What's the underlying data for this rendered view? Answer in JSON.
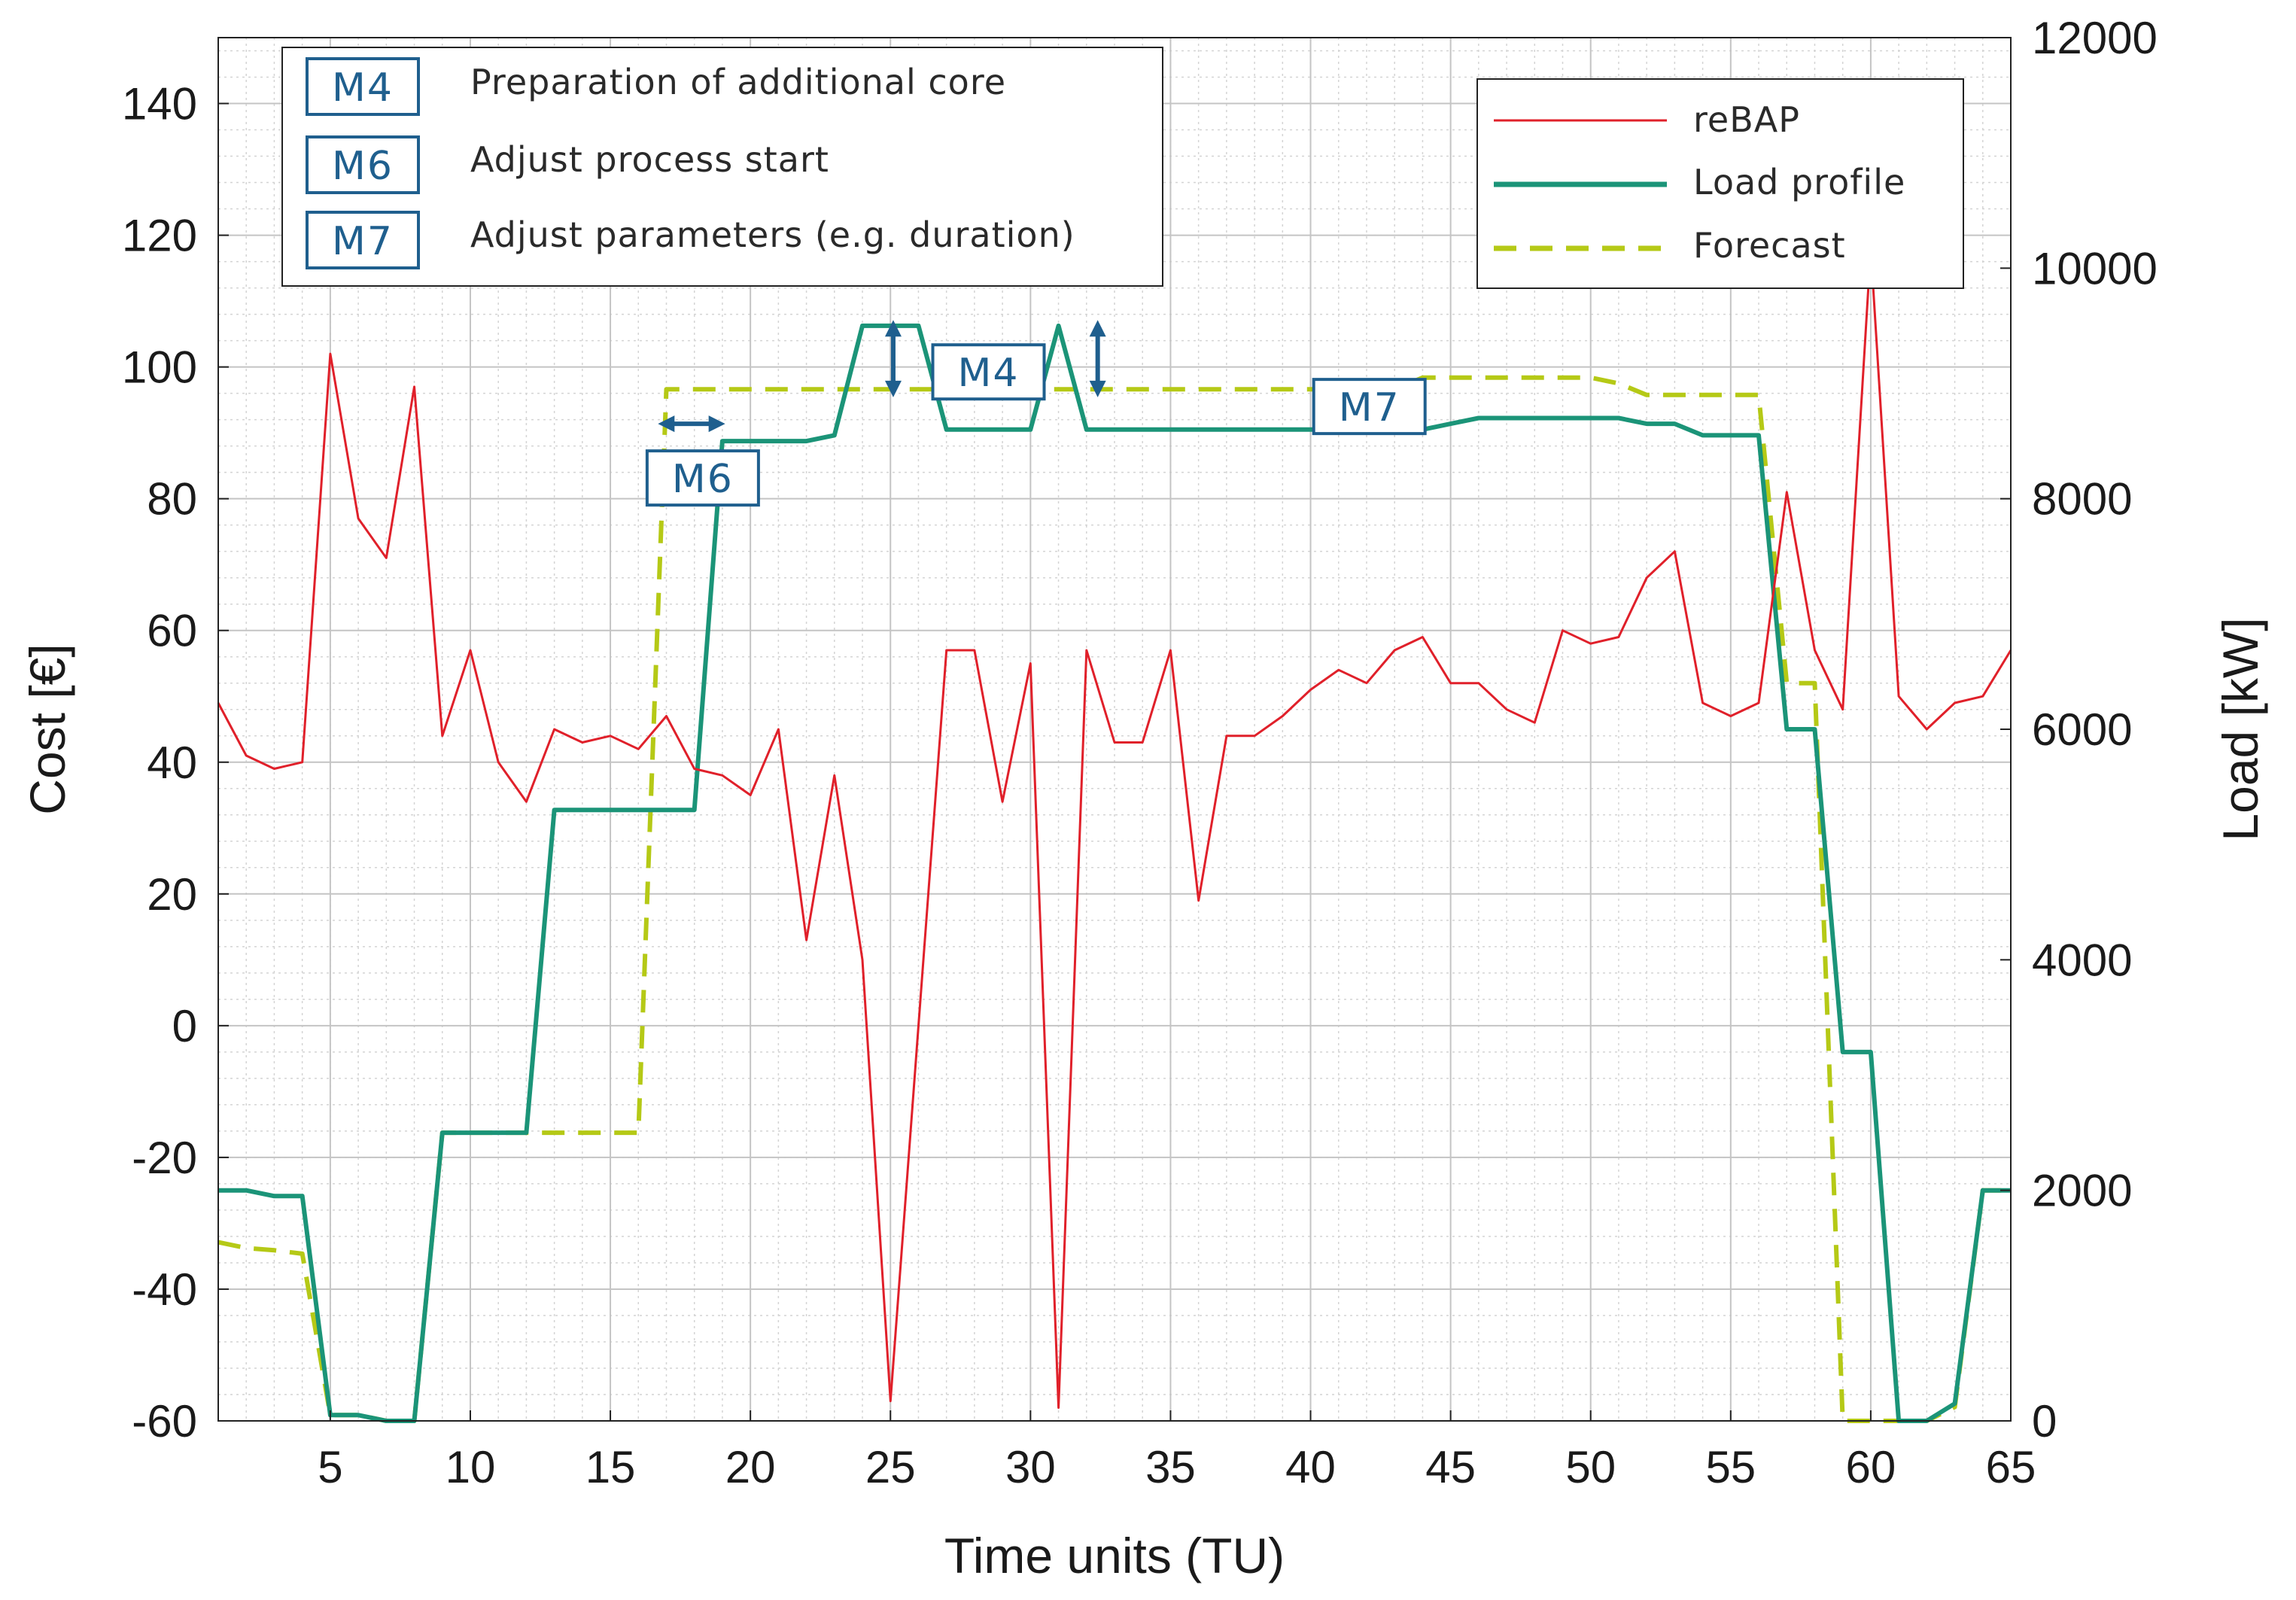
{
  "chart_data": {
    "type": "line",
    "xlabel": "Time units (TU)",
    "ylabel_left": "Cost [€]",
    "ylabel_right": "Load [kW]",
    "xlim": [
      1,
      65
    ],
    "ylim_left": [
      -60,
      150
    ],
    "ylim_right": [
      0,
      12000
    ],
    "x_ticks": [
      5,
      10,
      15,
      20,
      25,
      30,
      35,
      40,
      45,
      50,
      55,
      60,
      65
    ],
    "y_ticks_left": [
      140,
      120,
      100,
      80,
      60,
      40,
      20,
      0,
      -20,
      -40,
      -60
    ],
    "y_ticks_right": [
      12000,
      10000,
      8000,
      6000,
      4000,
      2000,
      0
    ],
    "grid": true,
    "measures": [
      {
        "code": "M4",
        "description": "Preparation of additional core"
      },
      {
        "code": "M6",
        "description": "Adjust process start"
      },
      {
        "code": "M7",
        "description": "Adjust parameters (e.g. duration)"
      }
    ],
    "series": [
      {
        "name": "reBAP",
        "axis": "left",
        "color": "#e0202a",
        "style": "solid",
        "x": [
          1,
          2,
          3,
          4,
          5,
          6,
          7,
          8,
          9,
          10,
          11,
          12,
          13,
          14,
          15,
          16,
          17,
          18,
          19,
          20,
          21,
          22,
          23,
          24,
          25,
          26,
          27,
          28,
          29,
          30,
          31,
          32,
          33,
          34,
          35,
          36,
          37,
          38,
          39,
          40,
          41,
          42,
          43,
          44,
          45,
          46,
          47,
          48,
          49,
          50,
          51,
          52,
          53,
          54,
          55,
          56,
          57,
          58,
          59,
          60,
          61,
          62,
          63,
          64,
          65
        ],
        "values": [
          49,
          41,
          39,
          40,
          102,
          77,
          71,
          97,
          44,
          57,
          40,
          34,
          45,
          43,
          44,
          42,
          47,
          39,
          38,
          35,
          45,
          13,
          38,
          10,
          -57,
          0,
          57,
          57,
          34,
          55,
          -58,
          57,
          43,
          43,
          57,
          19,
          44,
          44,
          47,
          51,
          54,
          52,
          57,
          59,
          52,
          52,
          48,
          46,
          60,
          58,
          59,
          68,
          72,
          49,
          47,
          49,
          81,
          57,
          48,
          118,
          50,
          45,
          49,
          50,
          57
        ]
      },
      {
        "name": "Load profile",
        "axis": "right",
        "color": "#1b9478",
        "style": "solid",
        "x": [
          1,
          2,
          3,
          4,
          5,
          6,
          7,
          8,
          9,
          12,
          13,
          18,
          19,
          22,
          23,
          24,
          26,
          27,
          30,
          31,
          32,
          44,
          45,
          46,
          51,
          52,
          53,
          54,
          56,
          57,
          58,
          59,
          60,
          61,
          62,
          63,
          64,
          65
        ],
        "values": [
          2000,
          2000,
          1950,
          1950,
          50,
          50,
          0,
          0,
          2500,
          2500,
          5300,
          5300,
          8500,
          8500,
          8550,
          9500,
          9500,
          8600,
          8600,
          9500,
          8600,
          8600,
          8650,
          8700,
          8700,
          8650,
          8650,
          8550,
          8550,
          6000,
          6000,
          3200,
          3200,
          0,
          0,
          150,
          2000,
          2000
        ]
      },
      {
        "name": "Forecast",
        "axis": "right",
        "color": "#b5c916",
        "style": "dashed",
        "x": [
          1,
          2,
          3,
          4,
          5,
          6,
          7,
          8,
          9,
          16,
          17,
          43,
          44,
          50,
          51,
          52,
          56,
          57,
          58,
          59,
          60,
          61,
          62,
          63,
          64,
          65
        ],
        "values": [
          1550,
          1500,
          1480,
          1450,
          50,
          50,
          0,
          0,
          2500,
          2500,
          8950,
          8950,
          9050,
          9050,
          9000,
          8900,
          8900,
          6400,
          6400,
          0,
          0,
          0,
          0,
          120,
          2000,
          2000
        ]
      }
    ],
    "annotations": [
      {
        "label": "M6",
        "x": 18,
        "y_right": 8650,
        "arrow": "horizontal"
      },
      {
        "label": "M4",
        "x": 28,
        "y_right": 9100,
        "arrow": "vertical"
      },
      {
        "label": "M7",
        "x": 42,
        "y_right": 8800,
        "arrow": "vertical"
      }
    ]
  }
}
